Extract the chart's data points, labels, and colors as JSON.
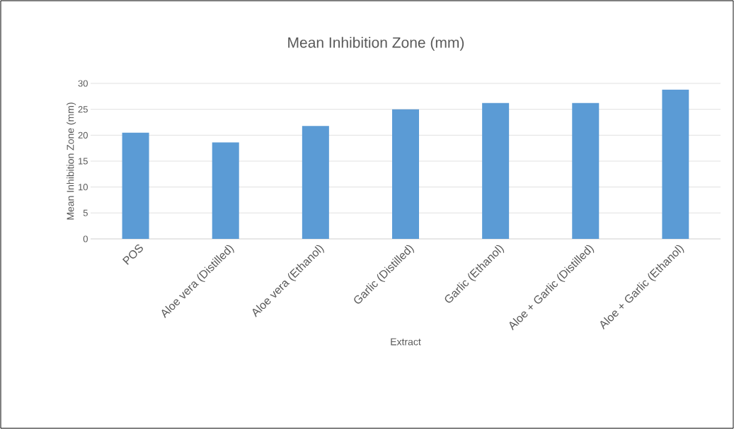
{
  "chart_data": {
    "type": "bar",
    "title": "Mean Inhibition Zone (mm)",
    "xlabel": "Extract",
    "ylabel": "Mean Inhibition Zone (mm)",
    "categories": [
      "POS",
      "Aloe vera (Distilled)",
      "Aloe vera (Ethanol)",
      "Garlic (Distilled)",
      "Garlic (Ethanol)",
      "Aloe + Garlic (Distilled)",
      "Aloe + Garlic (Ethanol)"
    ],
    "values": [
      20.5,
      18.6,
      21.8,
      25,
      26.2,
      26.2,
      28.8
    ],
    "color": "#5b9bd5",
    "ylim": [
      0,
      30
    ],
    "yticks": [
      0,
      5,
      10,
      15,
      20,
      25,
      30
    ],
    "grid": "y"
  }
}
